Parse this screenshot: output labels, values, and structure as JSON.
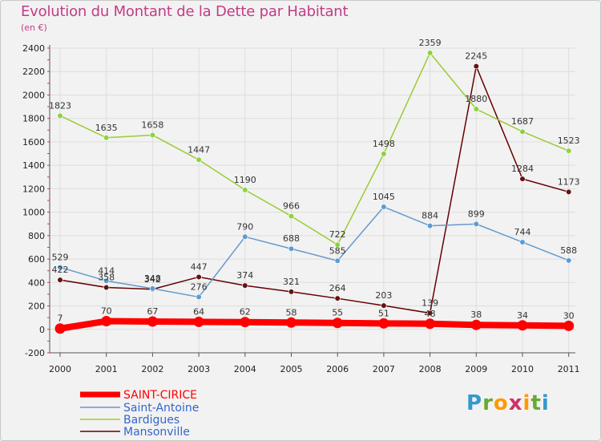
{
  "chart_data": {
    "type": "line",
    "title": "Evolution du Montant de la Dette par Habitant",
    "ylabel": "(en €)",
    "x": [
      "2000",
      "2001",
      "2002",
      "2003",
      "2004",
      "2005",
      "2006",
      "2007",
      "2008",
      "2009",
      "2010",
      "2011"
    ],
    "ylim": [
      -200,
      2400
    ],
    "yticks": [
      -200,
      0,
      200,
      400,
      600,
      800,
      1000,
      1200,
      1400,
      1600,
      1800,
      2000,
      2200,
      2400
    ],
    "grid": true,
    "legend_position": "bottom-left",
    "series": [
      {
        "name": "SAINT-CIRICE",
        "color": "#ff0000",
        "values": [
          7,
          70,
          67,
          64,
          62,
          58,
          55,
          51,
          48,
          38,
          34,
          30
        ]
      },
      {
        "name": "Saint-Antoine",
        "color": "#6699cc",
        "values": [
          529,
          414,
          348,
          276,
          790,
          688,
          585,
          1045,
          884,
          899,
          744,
          588
        ]
      },
      {
        "name": "Bardigues",
        "color": "#99cc33",
        "values": [
          1823,
          1635,
          1658,
          1447,
          1190,
          966,
          722,
          1498,
          2359,
          1880,
          1687,
          1523
        ]
      },
      {
        "name": "Mansonville",
        "color": "#660000",
        "values": [
          422,
          358,
          342,
          447,
          374,
          321,
          264,
          203,
          139,
          2245,
          1284,
          1173
        ]
      }
    ]
  },
  "legend_colors": {
    "SAINT-CIRICE": "#ff0000",
    "Saint-Antoine": "#3366cc",
    "Bardigues": "#3366cc",
    "Mansonville": "#3366cc"
  },
  "logo": {
    "letters": [
      "P",
      "r",
      "o",
      "x",
      "i",
      "t",
      "i"
    ],
    "colors": [
      "#3399cc",
      "#66aa33",
      "#ff9900",
      "#cc3366",
      "#ff9900",
      "#66aa33",
      "#3399cc"
    ]
  }
}
